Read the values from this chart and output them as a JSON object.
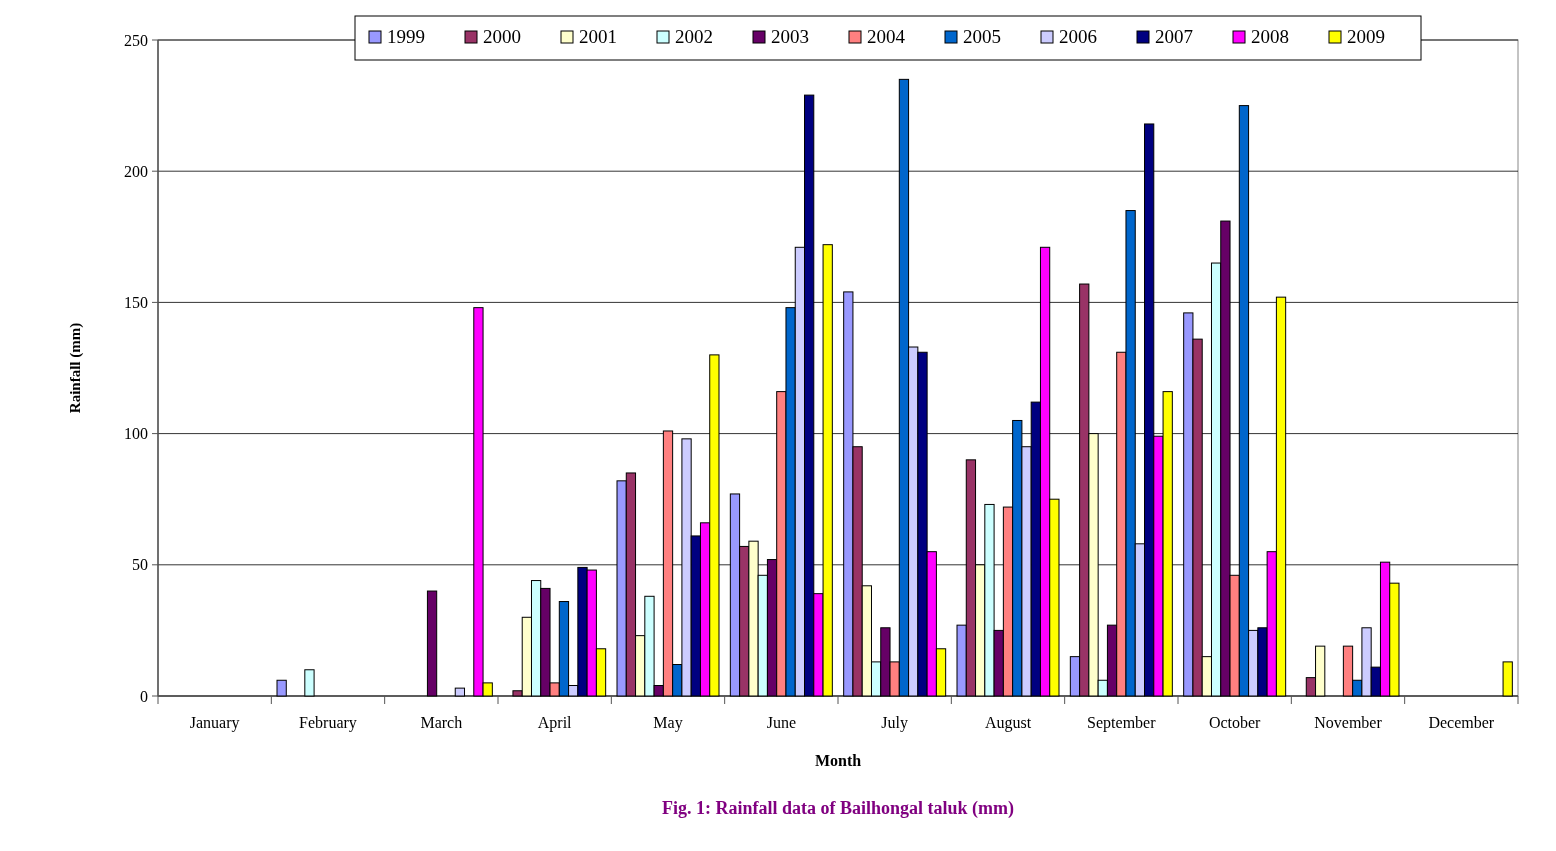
{
  "chart_data": {
    "type": "bar",
    "title": "Fig. 1: Rainfall data of Bailhongal taluk (mm)",
    "xlabel": "Month",
    "ylabel": "Rainfall (mm)",
    "categories": [
      "January",
      "February",
      "March",
      "April",
      "May",
      "June",
      "July",
      "August",
      "September",
      "October",
      "November",
      "December"
    ],
    "series": [
      {
        "name": "1999",
        "color": "#9999ff",
        "values": [
          0,
          6,
          0,
          0,
          82,
          77,
          154,
          27,
          15,
          146,
          0,
          0
        ]
      },
      {
        "name": "2000",
        "color": "#993366",
        "values": [
          0,
          0,
          0,
          2,
          85,
          57,
          95,
          90,
          157,
          136,
          7,
          0
        ]
      },
      {
        "name": "2001",
        "color": "#ffffcc",
        "values": [
          0,
          0,
          0,
          30,
          23,
          59,
          42,
          50,
          100,
          15,
          19,
          0
        ]
      },
      {
        "name": "2002",
        "color": "#ccffff",
        "values": [
          0,
          10,
          0,
          44,
          38,
          46,
          13,
          73,
          6,
          165,
          0,
          0
        ]
      },
      {
        "name": "2003",
        "color": "#660066",
        "values": [
          0,
          0,
          40,
          41,
          4,
          52,
          26,
          25,
          27,
          181,
          0,
          0
        ]
      },
      {
        "name": "2004",
        "color": "#ff8080",
        "values": [
          0,
          0,
          0,
          5,
          101,
          116,
          13,
          72,
          131,
          46,
          19,
          0
        ]
      },
      {
        "name": "2005",
        "color": "#0066cc",
        "values": [
          0,
          0,
          0,
          36,
          12,
          148,
          235,
          105,
          185,
          225,
          6,
          0
        ]
      },
      {
        "name": "2006",
        "color": "#ccccff",
        "values": [
          0,
          0,
          3,
          4,
          98,
          171,
          133,
          95,
          58,
          25,
          26,
          0
        ]
      },
      {
        "name": "2007",
        "color": "#000080",
        "values": [
          0,
          0,
          0,
          49,
          61,
          229,
          131,
          112,
          218,
          26,
          11,
          0
        ]
      },
      {
        "name": "2008",
        "color": "#ff00ff",
        "values": [
          0,
          0,
          148,
          48,
          66,
          39,
          55,
          171,
          99,
          55,
          51,
          0
        ]
      },
      {
        "name": "2009",
        "color": "#ffff00",
        "values": [
          0,
          0,
          5,
          18,
          130,
          172,
          18,
          75,
          116,
          152,
          43,
          13
        ]
      }
    ],
    "ylim": [
      0,
      250
    ],
    "yticks": [
      0,
      50,
      100,
      150,
      200,
      250
    ],
    "grid": "y",
    "legend": "top"
  }
}
